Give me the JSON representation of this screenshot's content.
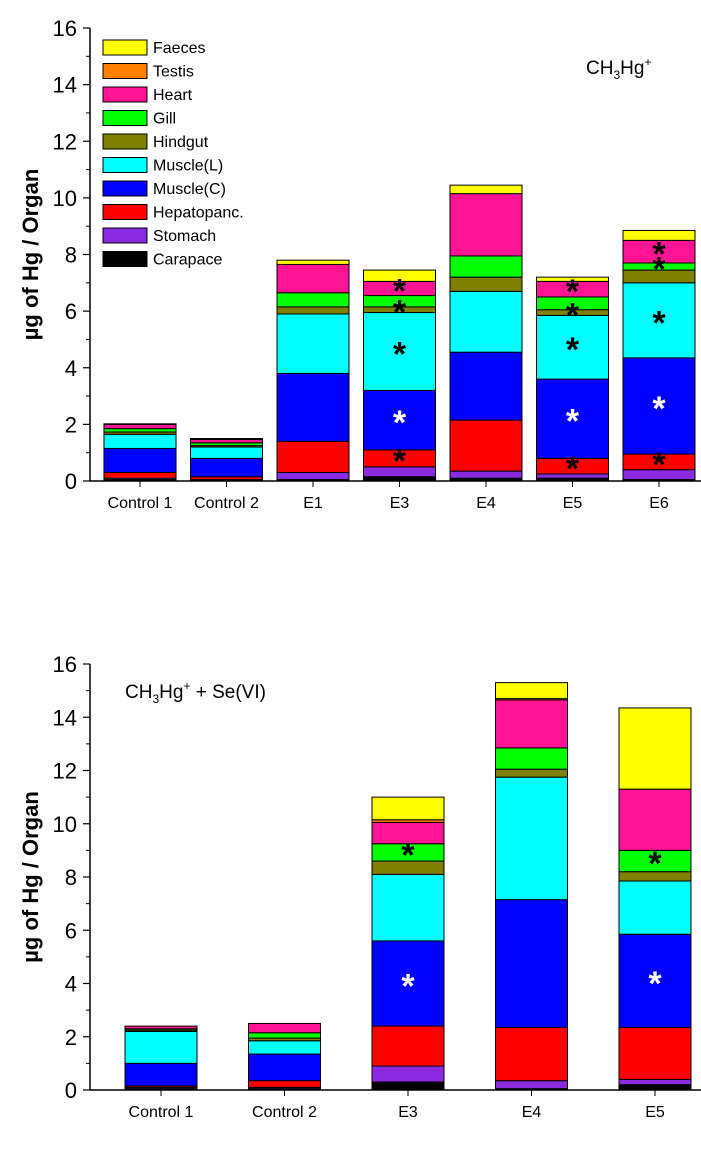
{
  "colors": {
    "Carapace": "#000000",
    "Stomach": "#8a2be2",
    "Hepatopanc.": "#ff0000",
    "Muscle(C)": "#0000ff",
    "Muscle(L)": "#00ffff",
    "Hindgut": "#808000",
    "Gill": "#00ff00",
    "Heart": "#ff1493",
    "Testis": "#ff8000",
    "Faeces": "#ffff00"
  },
  "chart_data": [
    {
      "type": "bar",
      "stacked": true,
      "annotation": {
        "main": "CH",
        "sub1": "3",
        "mid": "Hg",
        "sup": "+",
        "rest": ""
      },
      "ylabel": "µg of Hg / Organ",
      "ylim": [
        0,
        16
      ],
      "yticks": [
        0,
        2,
        4,
        6,
        8,
        10,
        12,
        14,
        16
      ],
      "categories": [
        "Control 1",
        "Control 2",
        "E1",
        "E3",
        "E4",
        "E5",
        "E6"
      ],
      "legend": [
        "Faeces",
        "Testis",
        "Heart",
        "Gill",
        "Hindgut",
        "Muscle(L)",
        "Muscle(C)",
        "Hepatopanc.",
        "Stomach",
        "Carapace"
      ],
      "legend_position": "top-left",
      "series": [
        {
          "name": "Carapace",
          "values": [
            0.05,
            0.03,
            0.05,
            0.15,
            0.1,
            0.1,
            0.05
          ]
        },
        {
          "name": "Stomach",
          "values": [
            0.05,
            0.02,
            0.25,
            0.35,
            0.25,
            0.15,
            0.35
          ]
        },
        {
          "name": "Hepatopanc.",
          "values": [
            0.2,
            0.1,
            1.1,
            0.6,
            1.8,
            0.55,
            0.55
          ]
        },
        {
          "name": "Muscle(C)",
          "values": [
            0.85,
            0.65,
            2.4,
            2.1,
            2.4,
            2.8,
            3.4
          ]
        },
        {
          "name": "Muscle(L)",
          "values": [
            0.5,
            0.4,
            2.1,
            2.75,
            2.15,
            2.25,
            2.65
          ]
        },
        {
          "name": "Hindgut",
          "values": [
            0.08,
            0.05,
            0.25,
            0.2,
            0.5,
            0.2,
            0.45
          ]
        },
        {
          "name": "Gill",
          "values": [
            0.12,
            0.1,
            0.5,
            0.4,
            0.75,
            0.45,
            0.25
          ]
        },
        {
          "name": "Heart",
          "values": [
            0.15,
            0.12,
            1.0,
            0.5,
            2.2,
            0.55,
            0.8
          ]
        },
        {
          "name": "Testis",
          "values": [
            0.0,
            0.0,
            0.0,
            0.0,
            0.0,
            0.0,
            0.0
          ]
        },
        {
          "name": "Faeces",
          "values": [
            0.02,
            0.03,
            0.15,
            0.4,
            0.3,
            0.15,
            0.35
          ]
        }
      ],
      "stars": [
        {
          "category": "E3",
          "series": "Hepatopanc.",
          "color": "#000000"
        },
        {
          "category": "E3",
          "series": "Muscle(C)",
          "color": "#ffffff"
        },
        {
          "category": "E3",
          "series": "Muscle(L)",
          "color": "#000000"
        },
        {
          "category": "E3",
          "series": "Hindgut",
          "color": "#000000"
        },
        {
          "category": "E3",
          "series": "Heart",
          "color": "#000000"
        },
        {
          "category": "E5",
          "series": "Hepatopanc.",
          "color": "#000000"
        },
        {
          "category": "E5",
          "series": "Muscle(C)",
          "color": "#ffffff"
        },
        {
          "category": "E5",
          "series": "Muscle(L)",
          "color": "#000000"
        },
        {
          "category": "E5",
          "series": "Hindgut",
          "color": "#000000"
        },
        {
          "category": "E5",
          "series": "Heart",
          "color": "#000000"
        },
        {
          "category": "E6",
          "series": "Hepatopanc.",
          "color": "#000000"
        },
        {
          "category": "E6",
          "series": "Muscle(C)",
          "color": "#ffffff"
        },
        {
          "category": "E6",
          "series": "Muscle(L)",
          "color": "#000000"
        },
        {
          "category": "E6",
          "series": "Gill",
          "color": "#000000"
        },
        {
          "category": "E6",
          "series": "Heart",
          "color": "#000000"
        }
      ]
    },
    {
      "type": "bar",
      "stacked": true,
      "annotation": {
        "main": "CH",
        "sub1": "3",
        "mid": "Hg",
        "sup": "+",
        "rest": " + Se(VI)"
      },
      "ylabel": "µg of Hg / Organ",
      "ylim": [
        0,
        16
      ],
      "yticks": [
        0,
        2,
        4,
        6,
        8,
        10,
        12,
        14,
        16
      ],
      "categories": [
        "Control 1",
        "Control 2",
        "E3",
        "E4",
        "E5"
      ],
      "series": [
        {
          "name": "Carapace",
          "values": [
            0.05,
            0.05,
            0.3,
            0.05,
            0.2
          ]
        },
        {
          "name": "Stomach",
          "values": [
            0.05,
            0.05,
            0.6,
            0.3,
            0.2
          ]
        },
        {
          "name": "Hepatopanc.",
          "values": [
            0.05,
            0.25,
            1.5,
            2.0,
            1.95
          ]
        },
        {
          "name": "Muscle(C)",
          "values": [
            0.85,
            1.0,
            3.2,
            4.8,
            3.5
          ]
        },
        {
          "name": "Muscle(L)",
          "values": [
            1.2,
            0.5,
            2.5,
            4.6,
            2.0
          ]
        },
        {
          "name": "Hindgut",
          "values": [
            0.05,
            0.1,
            0.5,
            0.3,
            0.35
          ]
        },
        {
          "name": "Gill",
          "values": [
            0.05,
            0.2,
            0.65,
            0.8,
            0.8
          ]
        },
        {
          "name": "Heart",
          "values": [
            0.1,
            0.35,
            0.8,
            1.8,
            2.3
          ]
        },
        {
          "name": "Testis",
          "values": [
            0.0,
            0.0,
            0.1,
            0.05,
            0.0
          ]
        },
        {
          "name": "Faeces",
          "values": [
            0.0,
            0.0,
            0.85,
            0.6,
            3.05
          ]
        }
      ],
      "stars": [
        {
          "category": "E3",
          "series": "Muscle(C)",
          "color": "#ffffff"
        },
        {
          "category": "E3",
          "series": "Gill",
          "color": "#000000"
        },
        {
          "category": "E5",
          "series": "Muscle(C)",
          "color": "#ffffff"
        },
        {
          "category": "E5",
          "series": "Gill",
          "color": "#000000"
        }
      ]
    }
  ]
}
